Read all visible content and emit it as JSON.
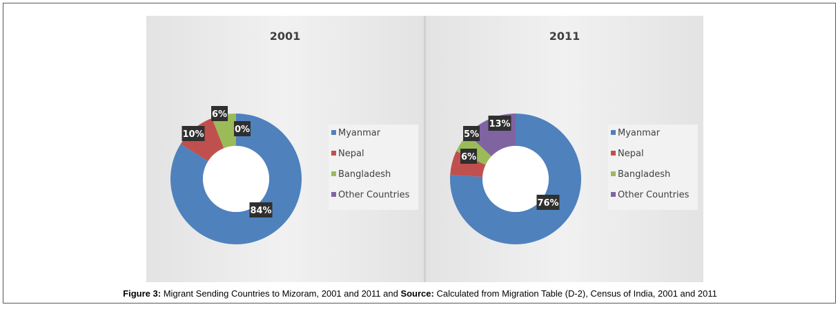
{
  "caption": {
    "figure_label": "Figure 3:",
    "figure_text": " Migrant Sending Countries to Mizoram, 2001 and 2011 and ",
    "source_label": "Source:",
    "source_text": " Calculated from Migration Table (D-2), Census of India, 2001 and 2011"
  },
  "colors": {
    "Myanmar": "#4f81bd",
    "Nepal": "#c0504d",
    "Bangladesh": "#9bbb59",
    "Other Countries": "#8064a2",
    "label_box": "#2f2f2f"
  },
  "chart_data": [
    {
      "type": "pie",
      "variant": "donut",
      "title": "2001",
      "categories": [
        "Myanmar",
        "Nepal",
        "Bangladesh",
        "Other Countries"
      ],
      "values": [
        84,
        10,
        6,
        0
      ],
      "data_labels": [
        "84%",
        "10%",
        "6%",
        "0%"
      ],
      "legend": [
        "Myanmar",
        "Nepal",
        "Bangladesh",
        "Other Countries"
      ],
      "legend_position": "right"
    },
    {
      "type": "pie",
      "variant": "donut",
      "title": "2011",
      "categories": [
        "Myanmar",
        "Nepal",
        "Bangladesh",
        "Other Countries"
      ],
      "values": [
        76,
        6,
        5,
        13
      ],
      "data_labels": [
        "76%",
        "6%",
        "5%",
        "13%"
      ],
      "legend": [
        "Myanmar",
        "Nepal",
        "Bangladesh",
        "Other Countries"
      ],
      "legend_position": "right"
    }
  ]
}
